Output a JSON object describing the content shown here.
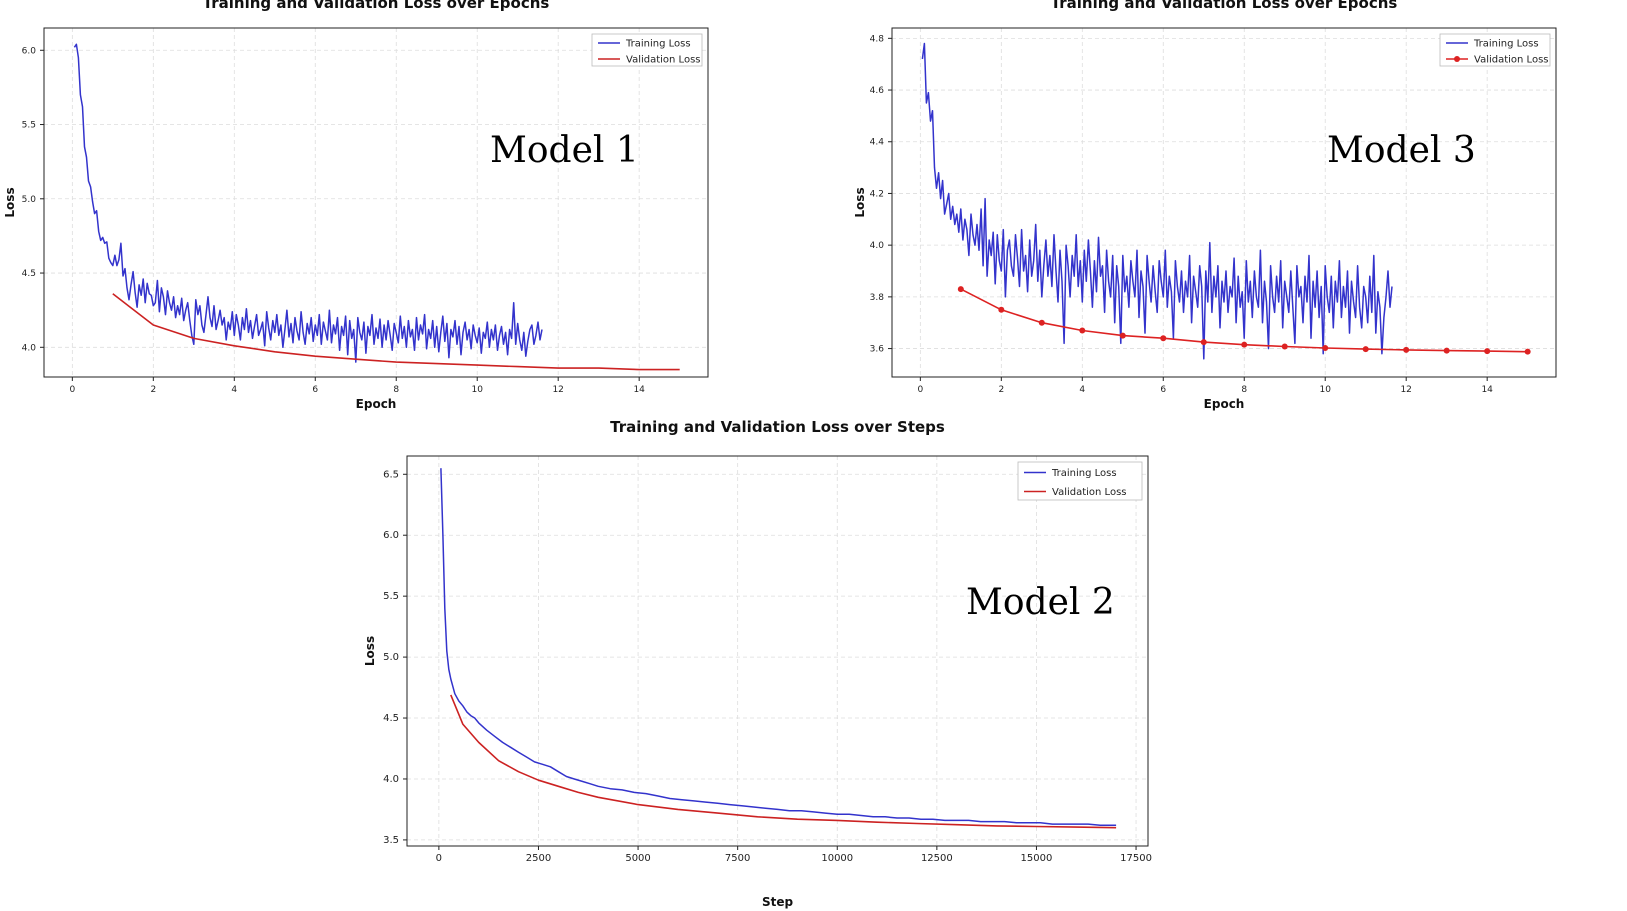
{
  "chart_data": [
    {
      "id": "m1",
      "type": "line",
      "title": "Training and Validation Loss over Epochs",
      "xlabel": "Epoch",
      "ylabel": "Loss",
      "annotation": "Model 1",
      "xlim": [
        -0.7,
        15.7
      ],
      "ylim": [
        3.8,
        6.15
      ],
      "xticks": [
        0,
        2,
        4,
        6,
        8,
        10,
        12,
        14
      ],
      "yticks": [
        4.0,
        4.5,
        5.0,
        5.5,
        6.0
      ],
      "ytick_labels": [
        "4.0",
        "4.5",
        "5.0",
        "5.5",
        "6.0"
      ],
      "grid": true,
      "legend": "top-right",
      "series": [
        {
          "name": "Training Loss",
          "color": "#3333cc",
          "x_start": 0.05,
          "x_step": 0.05,
          "values": [
            6.02,
            6.04,
            5.95,
            5.7,
            5.62,
            5.35,
            5.28,
            5.12,
            5.08,
            4.98,
            4.9,
            4.92,
            4.78,
            4.72,
            4.74,
            4.7,
            4.71,
            4.6,
            4.57,
            4.55,
            4.62,
            4.55,
            4.59,
            4.7,
            4.48,
            4.53,
            4.4,
            4.32,
            4.42,
            4.51,
            4.37,
            4.27,
            4.42,
            4.35,
            4.46,
            4.3,
            4.43,
            4.36,
            4.35,
            4.28,
            4.3,
            4.45,
            4.24,
            4.4,
            4.34,
            4.22,
            4.38,
            4.3,
            4.25,
            4.34,
            4.2,
            4.28,
            4.22,
            4.33,
            4.18,
            4.25,
            4.3,
            4.18,
            4.08,
            4.02,
            4.32,
            4.22,
            4.28,
            4.15,
            4.1,
            4.22,
            4.34,
            4.2,
            4.14,
            4.28,
            4.12,
            4.18,
            4.25,
            4.15,
            4.2,
            4.05,
            4.17,
            4.12,
            4.24,
            4.08,
            4.22,
            4.15,
            4.05,
            4.2,
            4.12,
            4.26,
            4.1,
            4.18,
            4.06,
            4.14,
            4.22,
            4.08,
            4.12,
            4.17,
            4.01,
            4.24,
            4.13,
            4.05,
            4.18,
            4.1,
            4.22,
            4.08,
            4.15,
            4.0,
            4.12,
            4.25,
            4.07,
            4.16,
            4.03,
            4.2,
            4.11,
            4.05,
            4.24,
            4.1,
            4.02,
            4.16,
            4.09,
            4.2,
            4.04,
            4.15,
            4.08,
            4.22,
            4.02,
            4.17,
            4.11,
            4.05,
            4.25,
            4.03,
            4.15,
            4.09,
            4.2,
            3.98,
            4.14,
            4.08,
            4.21,
            3.95,
            4.18,
            4.06,
            4.12,
            3.9,
            4.2,
            4.1,
            4.05,
            4.17,
            3.96,
            4.14,
            4.08,
            4.22,
            4.02,
            4.13,
            4.06,
            4.19,
            4.0,
            4.15,
            4.05,
            4.18,
            4.08,
            3.98,
            4.16,
            4.1,
            4.03,
            4.21,
            4.06,
            4.14,
            4.0,
            4.18,
            4.07,
            4.12,
            3.98,
            4.2,
            4.05,
            4.15,
            4.09,
            4.22,
            3.99,
            4.12,
            4.06,
            4.18,
            4.0,
            4.14,
            3.97,
            4.1,
            4.21,
            4.04,
            4.16,
            3.93,
            4.12,
            4.07,
            4.18,
            4.02,
            4.14,
            3.95,
            4.1,
            4.17,
            4.05,
            4.12,
            3.99,
            4.15,
            4.08,
            4.03,
            4.13,
            3.96,
            4.1,
            4.06,
            4.17,
            4.0,
            4.12,
            4.05,
            4.15,
            3.98,
            4.08,
            4.14,
            4.02,
            4.1,
            3.95,
            4.12,
            4.06,
            4.3,
            4.02,
            4.16,
            4.05,
            3.98,
            4.1,
            3.94,
            4.04,
            4.12,
            4.15,
            4.02,
            4.08,
            4.17,
            4.05,
            4.12
          ]
        },
        {
          "name": "Validation Loss",
          "color": "#cc2222",
          "marker": false,
          "x": [
            1,
            2,
            3,
            4,
            5,
            6,
            7,
            8,
            9,
            10,
            11,
            12,
            13,
            14,
            15
          ],
          "values": [
            4.36,
            4.15,
            4.06,
            4.01,
            3.97,
            3.94,
            3.92,
            3.9,
            3.89,
            3.88,
            3.87,
            3.86,
            3.86,
            3.85,
            3.85
          ]
        }
      ]
    },
    {
      "id": "m3",
      "type": "line",
      "title": "Training and Validation Loss over Epochs",
      "xlabel": "Epoch",
      "ylabel": "Loss",
      "annotation": "Model 3",
      "xlim": [
        -0.7,
        15.7
      ],
      "ylim": [
        3.49,
        4.84
      ],
      "xticks": [
        0,
        2,
        4,
        6,
        8,
        10,
        12,
        14
      ],
      "yticks": [
        3.6,
        3.8,
        4.0,
        4.2,
        4.4,
        4.6,
        4.8
      ],
      "ytick_labels": [
        "3.6",
        "3.8",
        "4.0",
        "4.2",
        "4.4",
        "4.6",
        "4.8"
      ],
      "grid": true,
      "legend": "top-right",
      "series": [
        {
          "name": "Training Loss",
          "color": "#3333cc",
          "x_start": 0.05,
          "x_step": 0.05,
          "values": [
            4.72,
            4.78,
            4.55,
            4.59,
            4.48,
            4.52,
            4.3,
            4.22,
            4.28,
            4.18,
            4.25,
            4.12,
            4.16,
            4.2,
            4.1,
            4.15,
            4.08,
            4.12,
            4.05,
            4.14,
            4.02,
            4.1,
            4.06,
            3.96,
            4.12,
            4.04,
            4.0,
            4.08,
            3.98,
            4.14,
            3.92,
            4.18,
            3.88,
            4.02,
            3.96,
            4.05,
            3.85,
            4.04,
            3.94,
            3.9,
            4.06,
            3.8,
            3.98,
            4.02,
            3.92,
            3.88,
            4.04,
            3.95,
            3.84,
            4.06,
            3.9,
            3.96,
            3.82,
            4.02,
            3.88,
            3.94,
            4.08,
            3.86,
            3.98,
            3.8,
            3.92,
            4.02,
            3.88,
            3.96,
            3.84,
            4.04,
            3.9,
            3.78,
            3.98,
            3.86,
            3.62,
            4.0,
            3.92,
            3.8,
            3.96,
            3.88,
            4.04,
            3.84,
            3.94,
            3.78,
            3.98,
            3.86,
            4.02,
            3.9,
            3.76,
            3.94,
            3.82,
            4.03,
            3.88,
            3.92,
            3.74,
            3.98,
            3.86,
            3.8,
            3.96,
            3.7,
            3.92,
            3.84,
            3.62,
            3.96,
            3.82,
            3.88,
            3.76,
            3.94,
            3.86,
            3.8,
            3.98,
            3.72,
            3.9,
            3.84,
            3.66,
            3.96,
            3.86,
            3.78,
            3.92,
            3.82,
            3.74,
            3.94,
            3.86,
            3.8,
            3.98,
            3.76,
            3.88,
            3.82,
            3.64,
            3.94,
            3.84,
            3.78,
            3.9,
            3.74,
            3.86,
            3.8,
            3.96,
            3.7,
            3.88,
            3.82,
            3.76,
            3.92,
            3.84,
            3.56,
            3.9,
            3.78,
            4.01,
            3.74,
            3.88,
            3.8,
            3.92,
            3.68,
            3.86,
            3.78,
            3.9,
            3.74,
            3.84,
            3.8,
            3.95,
            3.7,
            3.88,
            3.76,
            3.82,
            3.64,
            3.94,
            3.78,
            3.86,
            3.72,
            3.9,
            3.8,
            3.76,
            3.98,
            3.7,
            3.86,
            3.78,
            3.6,
            3.92,
            3.8,
            3.74,
            3.88,
            3.78,
            3.94,
            3.68,
            3.86,
            3.8,
            3.74,
            3.9,
            3.76,
            3.62,
            3.92,
            3.8,
            3.84,
            3.7,
            3.88,
            3.78,
            3.96,
            3.64,
            3.86,
            3.76,
            3.9,
            3.72,
            3.84,
            3.58,
            3.92,
            3.8,
            3.74,
            3.88,
            3.68,
            3.86,
            3.78,
            3.94,
            3.72,
            3.84,
            3.76,
            3.9,
            3.66,
            3.86,
            3.78,
            3.72,
            3.92,
            3.76,
            3.68,
            3.84,
            3.8,
            3.7,
            3.88,
            3.74,
            3.96,
            3.66,
            3.82,
            3.76,
            3.58,
            3.72,
            3.8,
            3.9,
            3.76,
            3.84
          ]
        },
        {
          "name": "Validation Loss",
          "color": "#dd2222",
          "marker": true,
          "x": [
            1,
            2,
            3,
            4,
            5,
            6,
            7,
            8,
            9,
            10,
            11,
            12,
            13,
            14,
            15
          ],
          "values": [
            3.83,
            3.75,
            3.7,
            3.67,
            3.65,
            3.64,
            3.625,
            3.615,
            3.608,
            3.602,
            3.598,
            3.595,
            3.592,
            3.59,
            3.588
          ]
        }
      ]
    },
    {
      "id": "m2",
      "type": "line",
      "title": "Training and Validation Loss over Steps",
      "xlabel": "Step",
      "ylabel": "Loss",
      "annotation": "Model 2",
      "xlim": [
        -800,
        17800
      ],
      "ylim": [
        3.45,
        6.65
      ],
      "xticks": [
        0,
        2500,
        5000,
        7500,
        10000,
        12500,
        15000,
        17500
      ],
      "yticks": [
        3.5,
        4.0,
        4.5,
        5.0,
        5.5,
        6.0,
        6.5
      ],
      "ytick_labels": [
        "3.5",
        "4.0",
        "4.5",
        "5.0",
        "5.5",
        "6.0",
        "6.5"
      ],
      "grid": true,
      "legend": "top-right",
      "series": [
        {
          "name": "Training Loss",
          "color": "#3333cc",
          "x": [
            50,
            100,
            150,
            200,
            250,
            300,
            350,
            400,
            500,
            600,
            700,
            800,
            900,
            1000,
            1200,
            1400,
            1600,
            1800,
            2000,
            2200,
            2400,
            2600,
            2800,
            3000,
            3200,
            3400,
            3600,
            3800,
            4000,
            4300,
            4600,
            4900,
            5200,
            5500,
            5800,
            6100,
            6400,
            6700,
            7000,
            7300,
            7600,
            7900,
            8200,
            8500,
            8800,
            9100,
            9400,
            9700,
            10000,
            10300,
            10600,
            10900,
            11200,
            11500,
            11800,
            12100,
            12400,
            12700,
            13000,
            13300,
            13600,
            13900,
            14200,
            14500,
            14800,
            15100,
            15400,
            15700,
            16000,
            16300,
            16600,
            16900,
            17000
          ],
          "values": [
            6.55,
            6.0,
            5.4,
            5.05,
            4.9,
            4.82,
            4.76,
            4.7,
            4.64,
            4.6,
            4.55,
            4.52,
            4.5,
            4.46,
            4.4,
            4.35,
            4.3,
            4.26,
            4.22,
            4.18,
            4.14,
            4.12,
            4.1,
            4.06,
            4.02,
            4.0,
            3.98,
            3.96,
            3.94,
            3.92,
            3.91,
            3.89,
            3.88,
            3.86,
            3.84,
            3.83,
            3.82,
            3.81,
            3.8,
            3.79,
            3.78,
            3.77,
            3.76,
            3.75,
            3.74,
            3.74,
            3.73,
            3.72,
            3.71,
            3.71,
            3.7,
            3.69,
            3.69,
            3.68,
            3.68,
            3.67,
            3.67,
            3.66,
            3.66,
            3.66,
            3.65,
            3.65,
            3.65,
            3.64,
            3.64,
            3.64,
            3.63,
            3.63,
            3.63,
            3.63,
            3.62,
            3.62,
            3.62
          ]
        },
        {
          "name": "Validation Loss",
          "color": "#cc2222",
          "marker": false,
          "x": [
            300,
            600,
            1000,
            1500,
            2000,
            2500,
            3000,
            3500,
            4000,
            5000,
            6000,
            7000,
            8000,
            9000,
            10000,
            11000,
            12000,
            13000,
            14000,
            15000,
            16000,
            17000
          ],
          "values": [
            4.69,
            4.45,
            4.3,
            4.15,
            4.06,
            3.99,
            3.94,
            3.89,
            3.85,
            3.79,
            3.75,
            3.72,
            3.69,
            3.67,
            3.66,
            3.645,
            3.635,
            3.625,
            3.615,
            3.61,
            3.605,
            3.6
          ]
        }
      ]
    }
  ]
}
